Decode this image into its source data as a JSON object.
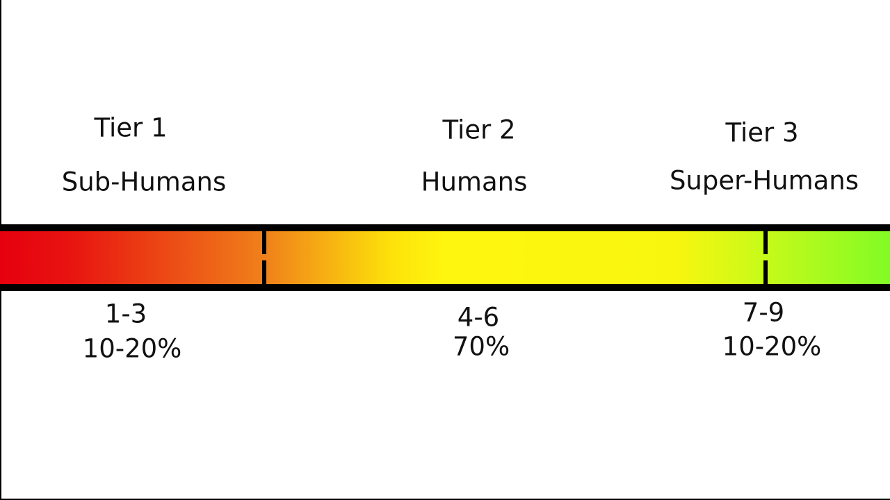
{
  "tiers": [
    {
      "title": "Tier 1",
      "name": "Sub-Humans",
      "range": "1-3",
      "share": "10-20%"
    },
    {
      "title": "Tier 2",
      "name": "Humans",
      "range": "4-6",
      "share": "70%"
    },
    {
      "title": "Tier 3",
      "name": "Super-Humans",
      "range": "7-9",
      "share": "10-20%"
    }
  ]
}
